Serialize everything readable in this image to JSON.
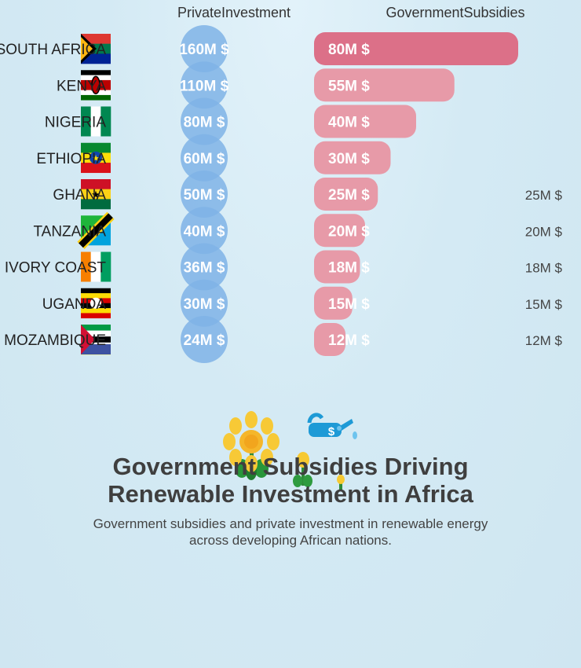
{
  "chart_data": {
    "type": "bar",
    "title_lines": [
      "Government Subsidies Driving",
      "Renewable Investment in Africa"
    ],
    "subtitle_lines": [
      "Government subsidies and private investment in renewable energy",
      "across developing African nations."
    ],
    "unit_suffix": "M $",
    "categories": [
      "SOUTH AFRICA",
      "KENYA",
      "NIGERIA",
      "ETHIOPIA",
      "GHANA",
      "TANZANIA",
      "IVORY COAST",
      "UGANDA",
      "MOZAMBIQUE"
    ],
    "series": [
      {
        "name": "PrivateInvestment",
        "mark": "circle",
        "color": "#7fb3e6",
        "values": [
          160,
          110,
          80,
          60,
          50,
          40,
          36,
          30,
          24
        ]
      },
      {
        "name": "GovernmentSubsidies",
        "mark": "rounded-bar",
        "color": "#e79aa8",
        "highlight_color": "#dc7088",
        "values": [
          80,
          55,
          40,
          30,
          25,
          20,
          18,
          15,
          12
        ]
      }
    ],
    "outside_labels": [
      "25M $",
      "20M $",
      "18M $",
      "15M $",
      "12M $"
    ],
    "flags": [
      "south-africa",
      "kenya",
      "nigeria",
      "ethiopia",
      "ghana",
      "tanzania",
      "ivory-coast",
      "uganda",
      "mozambique"
    ],
    "decorations": [
      "sunflower-icon",
      "watering-can-icon",
      "sprout-icon"
    ]
  }
}
